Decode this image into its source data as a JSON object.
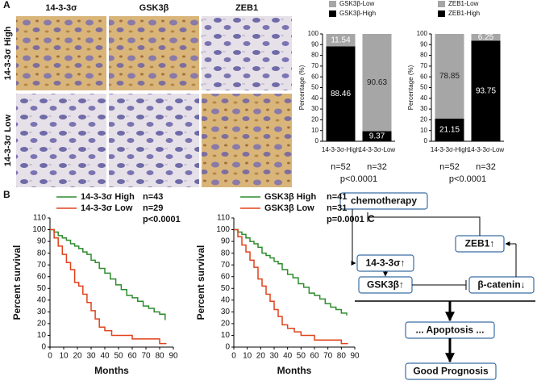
{
  "panels": {
    "a": "A",
    "b": "B",
    "c": "C"
  },
  "ihc": {
    "columns": [
      "14-3-3σ",
      "GSK3β",
      "ZEB1"
    ],
    "rows": [
      "14-3-3σ High",
      "14-3-3σ Low"
    ]
  },
  "chart_data": [
    {
      "type": "stacked_bar",
      "ylabel": "Percentage (%)",
      "categories": [
        "14-3-3σ-High",
        "14-3-3σ-Low"
      ],
      "series": [
        {
          "name": "GSK3β-Low",
          "color": "#a6a6a6",
          "values": [
            11.54,
            90.63
          ]
        },
        {
          "name": "GSK3β-High",
          "color": "#000000",
          "values": [
            88.46,
            9.37
          ]
        }
      ],
      "ylim": [
        0,
        100
      ],
      "yticks": [
        0,
        10,
        20,
        30,
        40,
        50,
        60,
        70,
        80,
        90,
        100
      ],
      "annotations": [
        "n=52",
        "n=32",
        "p<0.0001"
      ]
    },
    {
      "type": "stacked_bar",
      "ylabel": "Percentage (%)",
      "categories": [
        "14-3-3σ-High",
        "14-3-3σ-Low"
      ],
      "series": [
        {
          "name": "ZEB1-Low",
          "color": "#a6a6a6",
          "values": [
            78.85,
            6.25
          ]
        },
        {
          "name": "ZEB1-High",
          "color": "#000000",
          "values": [
            21.15,
            93.75
          ]
        }
      ],
      "ylim": [
        0,
        100
      ],
      "yticks": [
        0,
        10,
        20,
        30,
        40,
        50,
        60,
        70,
        80,
        90,
        100
      ],
      "annotations": [
        "n=52",
        "n=32",
        "p<0.0001"
      ]
    },
    {
      "type": "survival",
      "xlabel": "Months",
      "ylabel": "Percent survival",
      "series": [
        {
          "name": "14-3-3σ High",
          "n_label": "n=43",
          "color": "#2e8b2e",
          "x": [
            0,
            3,
            6,
            9,
            12,
            15,
            18,
            21,
            24,
            27,
            30,
            33,
            36,
            40,
            44,
            48,
            52,
            56,
            60,
            64,
            68,
            72,
            76,
            80,
            84
          ],
          "values": [
            100,
            98,
            95,
            93,
            91,
            88,
            86,
            84,
            81,
            79,
            74,
            72,
            67,
            63,
            58,
            53,
            49,
            44,
            42,
            39,
            35,
            33,
            30,
            28,
            23
          ]
        },
        {
          "name": "14-3-3σ Low",
          "n_label": "n=29",
          "color": "#e0421b",
          "x": [
            0,
            3,
            6,
            9,
            12,
            15,
            18,
            21,
            24,
            27,
            30,
            33,
            36,
            40,
            45,
            50,
            60,
            70,
            80,
            85
          ],
          "values": [
            100,
            93,
            86,
            79,
            72,
            66,
            55,
            52,
            45,
            38,
            31,
            24,
            17,
            14,
            10,
            10,
            7,
            7,
            3,
            3
          ]
        }
      ],
      "p_label": "p<0.0001",
      "xlim": [
        0,
        90
      ],
      "xticks": [
        0,
        10,
        20,
        30,
        40,
        50,
        60,
        70,
        80,
        90
      ],
      "ylim": [
        0,
        110
      ],
      "yticks": [
        0,
        10,
        20,
        30,
        40,
        50,
        60,
        70,
        80,
        90,
        100,
        110
      ]
    },
    {
      "type": "survival",
      "xlabel": "Months",
      "ylabel": "Percent survival",
      "series": [
        {
          "name": "GSK3β High",
          "n_label": "n=41",
          "color": "#2e8b2e",
          "x": [
            0,
            3,
            6,
            9,
            12,
            15,
            18,
            21,
            24,
            27,
            30,
            33,
            36,
            40,
            44,
            48,
            52,
            56,
            60,
            64,
            68,
            72,
            76,
            80,
            84
          ],
          "values": [
            100,
            98,
            96,
            93,
            90,
            88,
            85,
            80,
            78,
            76,
            73,
            71,
            66,
            62,
            59,
            54,
            51,
            46,
            44,
            41,
            37,
            34,
            32,
            29,
            27
          ]
        },
        {
          "name": "GSK3β Low",
          "n_label": "n=31",
          "color": "#e0421b",
          "x": [
            0,
            3,
            6,
            9,
            12,
            15,
            18,
            21,
            24,
            27,
            30,
            33,
            36,
            40,
            45,
            50,
            60,
            70,
            80,
            85
          ],
          "values": [
            100,
            94,
            87,
            81,
            74,
            68,
            58,
            52,
            45,
            39,
            32,
            26,
            19,
            16,
            13,
            10,
            6,
            6,
            3,
            3
          ]
        }
      ],
      "p_label": "p=0.0001",
      "xlim": [
        0,
        90
      ],
      "xticks": [
        0,
        10,
        20,
        30,
        40,
        50,
        60,
        70,
        80,
        90
      ],
      "ylim": [
        0,
        110
      ],
      "yticks": [
        0,
        10,
        20,
        30,
        40,
        50,
        60,
        70,
        80,
        90,
        100,
        110
      ]
    }
  ],
  "diagram": {
    "nodes": [
      "chemotherapy",
      "ZEB1↑",
      "14-3-3σ↑",
      "GSK3β↑",
      "β-catenin↓",
      "... Apoptosis ...",
      "Good Prognosis"
    ]
  }
}
